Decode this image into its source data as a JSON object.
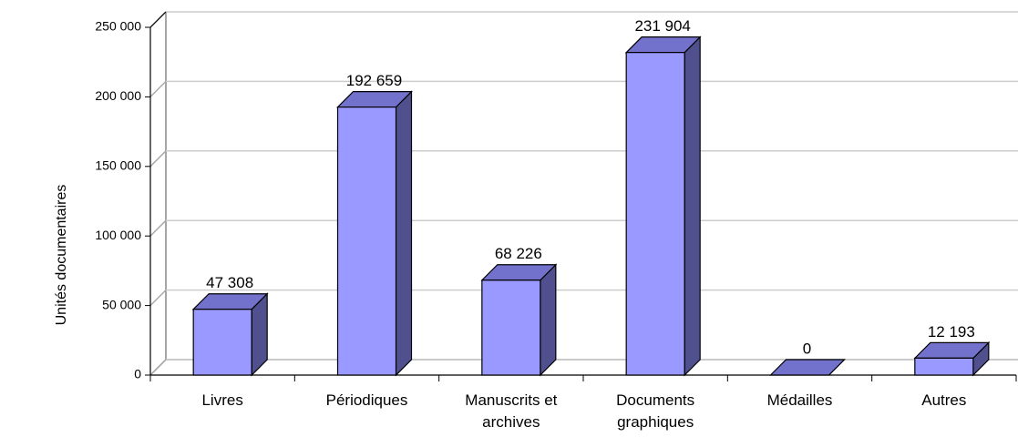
{
  "chart_data": {
    "type": "bar3d",
    "y_label": "Unités documentaires",
    "categories": [
      "Livres",
      "Périodiques",
      "Manuscrits et archives",
      "Documents graphiques",
      "Médailles",
      "Autres"
    ],
    "values": [
      47308,
      192659,
      68226,
      231904,
      0,
      12193
    ],
    "value_labels": [
      "47 308",
      "192 659",
      "68 226",
      "231 904",
      "0",
      "12 193"
    ],
    "color": "#9999ff",
    "ylim": [
      0,
      250000
    ],
    "yticks": [
      0,
      {
        "value": 50000,
        "label": "50 000"
      },
      {
        "value": 100000,
        "label": "100 000"
      },
      {
        "value": 150000,
        "label": "150 000"
      },
      {
        "value": 200000,
        "label": "200 000"
      },
      {
        "value": 250000,
        "label": "250 000"
      }
    ],
    "grid": true
  }
}
